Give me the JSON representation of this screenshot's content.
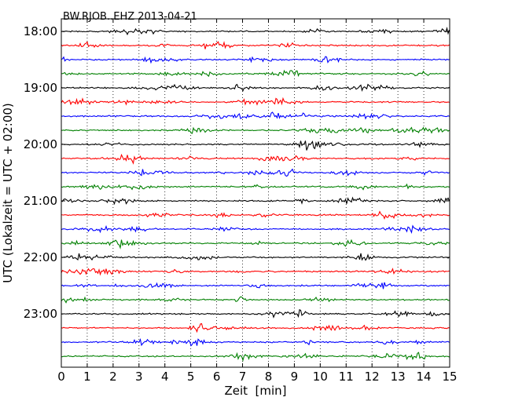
{
  "chart_data": {
    "type": "line",
    "title": "BW.RJOB..EHZ 2013-04-21",
    "xlabel": "Zeit  [min]",
    "ylabel": "UTC (Lokalzeit = UTC + 02:00)",
    "xlim": [
      0,
      15
    ],
    "x_ticks": [
      "0",
      "1",
      "2",
      "3",
      "4",
      "5",
      "6",
      "7",
      "8",
      "9",
      "10",
      "11",
      "12",
      "13",
      "14",
      "15"
    ],
    "y_tick_labels": [
      "18:00",
      "19:00",
      "20:00",
      "21:00",
      "22:00",
      "23:00"
    ],
    "grid": "vertical dotted lines at each minute",
    "trace_colors": [
      "#000000",
      "#ff0000",
      "#0000ff",
      "#008000"
    ],
    "trace_start_times": [
      "18:00",
      "18:15",
      "18:30",
      "18:45",
      "19:00",
      "19:15",
      "19:30",
      "19:45",
      "20:00",
      "20:15",
      "20:30",
      "20:45",
      "21:00",
      "21:15",
      "21:30",
      "21:45",
      "22:00",
      "22:15",
      "22:30",
      "22:45",
      "23:00",
      "23:15",
      "23:30",
      "23:45"
    ]
  }
}
